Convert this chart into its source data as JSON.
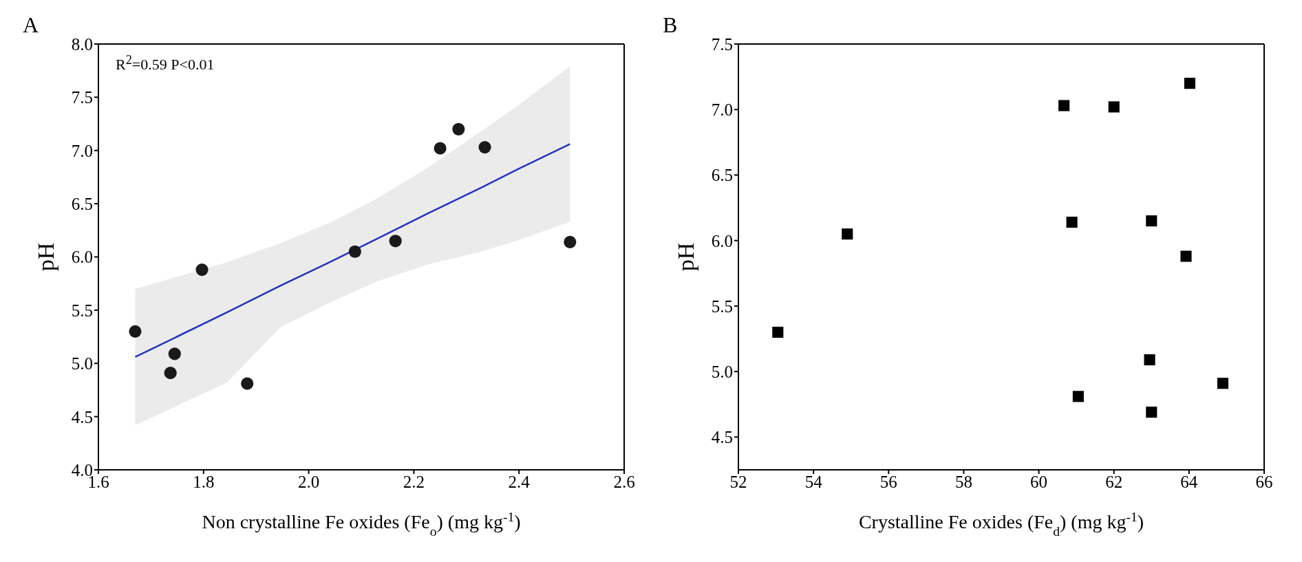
{
  "chart_data": [
    {
      "type": "scatter",
      "title": "A",
      "xlabel": "Non crystalline Fe oxides (Fe$_{o}$) (mg kg$^{-1}$)",
      "ylabel": "pH",
      "annotations": [
        "R$^{2}$=0.59 P<0.01"
      ],
      "xlim": [
        1.6,
        2.6
      ],
      "xticks": [
        {
          "value": 1.6,
          "label": "1.6"
        },
        {
          "value": 1.8,
          "label": "1.8"
        },
        {
          "value": 2.0,
          "label": "2.0"
        },
        {
          "value": 2.2,
          "label": "2.2"
        },
        {
          "value": 2.4,
          "label": "2.4"
        },
        {
          "value": 2.6,
          "label": "2.6"
        }
      ],
      "ylim": [
        4,
        8
      ],
      "yticks": [
        {
          "value": 4,
          "label": "4.0"
        },
        {
          "value": 4.5,
          "label": "4.5"
        },
        {
          "value": 5,
          "label": "5.0"
        },
        {
          "value": 5.5,
          "label": "5.5"
        },
        {
          "value": 6,
          "label": "6.0"
        },
        {
          "value": 6.5,
          "label": "6.5"
        },
        {
          "value": 7,
          "label": "7.0"
        },
        {
          "value": 7.5,
          "label": "7.5"
        },
        {
          "value": 8,
          "label": "8.0"
        }
      ],
      "grid": false,
      "series": [
        {
          "marker": "circle",
          "color": "#1a1a1a",
          "x": [
            1.67,
            1.745,
            1.737,
            1.797,
            1.883,
            2.088,
            2.165,
            2.25,
            2.285,
            2.335,
            2.497
          ],
          "values": [
            5.3,
            5.09,
            4.91,
            5.88,
            4.81,
            6.05,
            6.15,
            7.02,
            7.2,
            7.03,
            6.14
          ]
        },
        {
          "type": "line",
          "marker": "none",
          "color": "#2233bb",
          "x": [
            1.67,
            1.845,
            1.946,
            2.04,
            2.13,
            2.227,
            2.328,
            2.4,
            2.497
          ],
          "values": [
            5.06,
            5.48,
            5.73,
            5.95,
            6.17,
            6.41,
            6.65,
            6.83,
            7.06
          ],
          "lower": [
            4.42,
            4.82,
            5.34,
            5.57,
            5.77,
            5.93,
            6.05,
            6.16,
            6.33
          ],
          "upper": [
            5.7,
            5.95,
            6.13,
            6.32,
            6.55,
            6.84,
            7.18,
            7.43,
            7.79
          ]
        }
      ]
    },
    {
      "type": "scatter",
      "title": "B",
      "xlabel": "Crystalline Fe oxides (Fe$_{d}$) (mg kg$^{-1}$)",
      "ylabel": "pH",
      "xlim": [
        52,
        66
      ],
      "xticks": [
        52,
        54,
        56,
        58,
        60,
        62,
        64,
        66
      ],
      "ylim": [
        4.25,
        7.5
      ],
      "yticks": [
        {
          "value": 4.5,
          "label": "4.5"
        },
        {
          "value": 5,
          "label": "5.0"
        },
        {
          "value": 5.5,
          "label": "5.5"
        },
        {
          "value": 6,
          "label": "6.0"
        },
        {
          "value": 6.5,
          "label": "6.5"
        },
        {
          "value": 7,
          "label": "7.0"
        },
        {
          "value": 7.5,
          "label": "7.5"
        }
      ],
      "grid": false,
      "marker": "square",
      "series": [
        {
          "color": "#000000",
          "x": [
            53.05,
            54.9,
            60.67,
            60.88,
            61.05,
            62.0,
            62.95,
            63.0,
            63.0,
            63.92,
            64.02,
            64.9
          ],
          "values": [
            5.3,
            6.05,
            7.03,
            6.14,
            4.81,
            7.02,
            5.09,
            6.15,
            4.69,
            5.88,
            7.2,
            4.91
          ]
        }
      ]
    }
  ]
}
